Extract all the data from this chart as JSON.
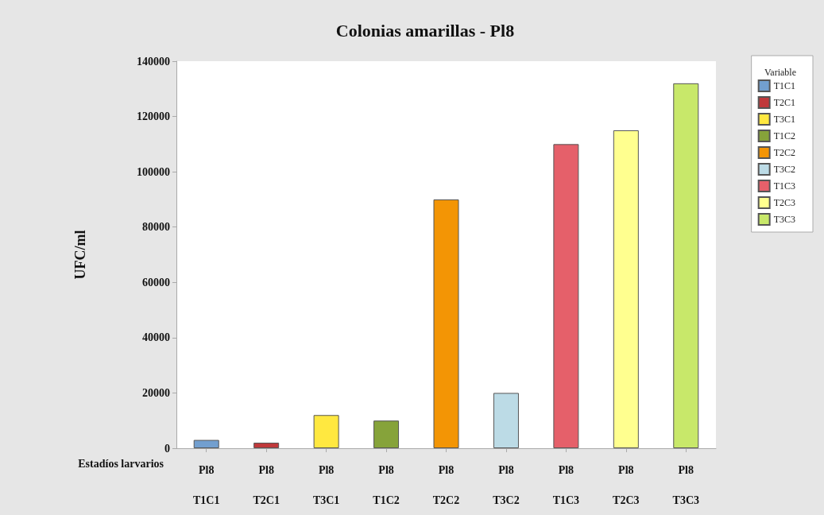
{
  "chart_data": {
    "type": "bar",
    "title": "Colonias amarillas - Pl8",
    "xlabel": "Estadíos larvarios",
    "ylabel": "UFC/ml",
    "legend_title": "Variable",
    "categories": [
      "Pl8\nT1C1",
      "Pl8\nT2C1",
      "Pl8\nT3C1",
      "Pl8\nT1C2",
      "Pl8\nT2C2",
      "Pl8\nT3C2",
      "Pl8\nT1C3",
      "Pl8\nT2C3",
      "Pl8\nT3C3"
    ],
    "series": [
      {
        "name": "T1C1",
        "color": "#729fcf",
        "values": [
          3000,
          null,
          null,
          null,
          null,
          null,
          null,
          null,
          null
        ]
      },
      {
        "name": "T2C1",
        "color": "#c0393b",
        "values": [
          null,
          2000,
          null,
          null,
          null,
          null,
          null,
          null,
          null
        ]
      },
      {
        "name": "T3C1",
        "color": "#ffe840",
        "values": [
          null,
          null,
          12000,
          null,
          null,
          null,
          null,
          null,
          null
        ]
      },
      {
        "name": "T1C2",
        "color": "#86a33a",
        "values": [
          null,
          null,
          null,
          10000,
          null,
          null,
          null,
          null,
          null
        ]
      },
      {
        "name": "T2C2",
        "color": "#f39505",
        "values": [
          null,
          null,
          null,
          null,
          90000,
          null,
          null,
          null,
          null
        ]
      },
      {
        "name": "T3C2",
        "color": "#bcdbe6",
        "values": [
          null,
          null,
          null,
          null,
          null,
          20000,
          null,
          null,
          null
        ]
      },
      {
        "name": "T1C3",
        "color": "#e5606a",
        "values": [
          null,
          null,
          null,
          null,
          null,
          null,
          110000,
          null,
          null
        ]
      },
      {
        "name": "T2C3",
        "color": "#ffff8f",
        "values": [
          null,
          null,
          null,
          null,
          null,
          null,
          null,
          115000,
          null
        ]
      },
      {
        "name": "T3C3",
        "color": "#c8e86a",
        "values": [
          null,
          null,
          null,
          null,
          null,
          null,
          null,
          null,
          132000
        ]
      }
    ],
    "ylim": [
      0,
      140000
    ],
    "yticks": [
      0,
      20000,
      40000,
      60000,
      80000,
      100000,
      120000,
      140000
    ],
    "grid": false,
    "legend": "right"
  }
}
